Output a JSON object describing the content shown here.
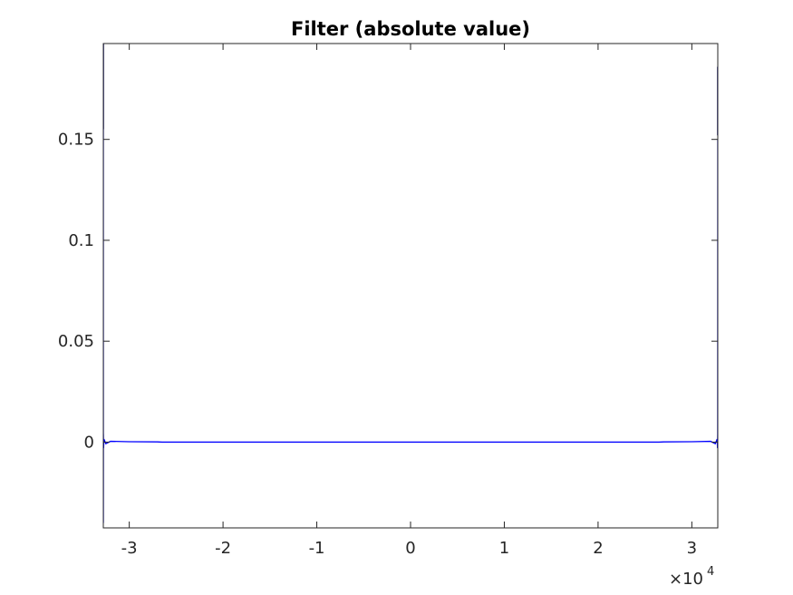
{
  "chart_data": {
    "type": "line",
    "title": "Filter (absolute value)",
    "xlabel": "",
    "ylabel": "",
    "xlim": [
      -32768,
      32767
    ],
    "ylim": [
      -0.0425,
      0.1975
    ],
    "x_multiplier": {
      "base": "10",
      "exponent": "4"
    },
    "x_ticks": [
      {
        "value": -30000,
        "label": "-3"
      },
      {
        "value": -20000,
        "label": "-2"
      },
      {
        "value": -10000,
        "label": "-1"
      },
      {
        "value": 0,
        "label": "0"
      },
      {
        "value": 10000,
        "label": "1"
      },
      {
        "value": 20000,
        "label": "2"
      },
      {
        "value": 30000,
        "label": "3"
      }
    ],
    "y_ticks": [
      {
        "value": 0,
        "label": "0"
      },
      {
        "value": 0.05,
        "label": "0.05"
      },
      {
        "value": 0.1,
        "label": "0.1"
      },
      {
        "value": 0.15,
        "label": "0.15"
      }
    ],
    "grid": false,
    "legend": "none",
    "series": [
      {
        "color": "#0000ff",
        "points": [
          [
            -32768,
            0.155
          ],
          [
            -32765,
            -0.04
          ],
          [
            -32760,
            0.004
          ],
          [
            -32740,
            -0.003
          ],
          [
            -32700,
            0.0015
          ],
          [
            -32500,
            -0.0008
          ],
          [
            -32000,
            0.0004
          ],
          [
            -30000,
            0.0002
          ],
          [
            -27000,
            0.0001
          ],
          [
            -26500,
            0.0
          ],
          [
            0,
            0.0
          ],
          [
            26500,
            0.0
          ],
          [
            27000,
            0.0001
          ],
          [
            30000,
            0.0002
          ],
          [
            32000,
            0.0004
          ],
          [
            32500,
            -0.0008
          ],
          [
            32700,
            0.0015
          ],
          [
            32740,
            -0.003
          ],
          [
            32760,
            0.004
          ],
          [
            32767,
            0.15
          ]
        ]
      },
      {
        "color": "#00007a",
        "points": [
          [
            -32768,
            0.155
          ],
          [
            -32768,
            0.1975
          ]
        ]
      },
      {
        "color": "#00007a",
        "points": [
          [
            32767,
            0.152
          ],
          [
            32767,
            0.186
          ]
        ]
      }
    ]
  }
}
